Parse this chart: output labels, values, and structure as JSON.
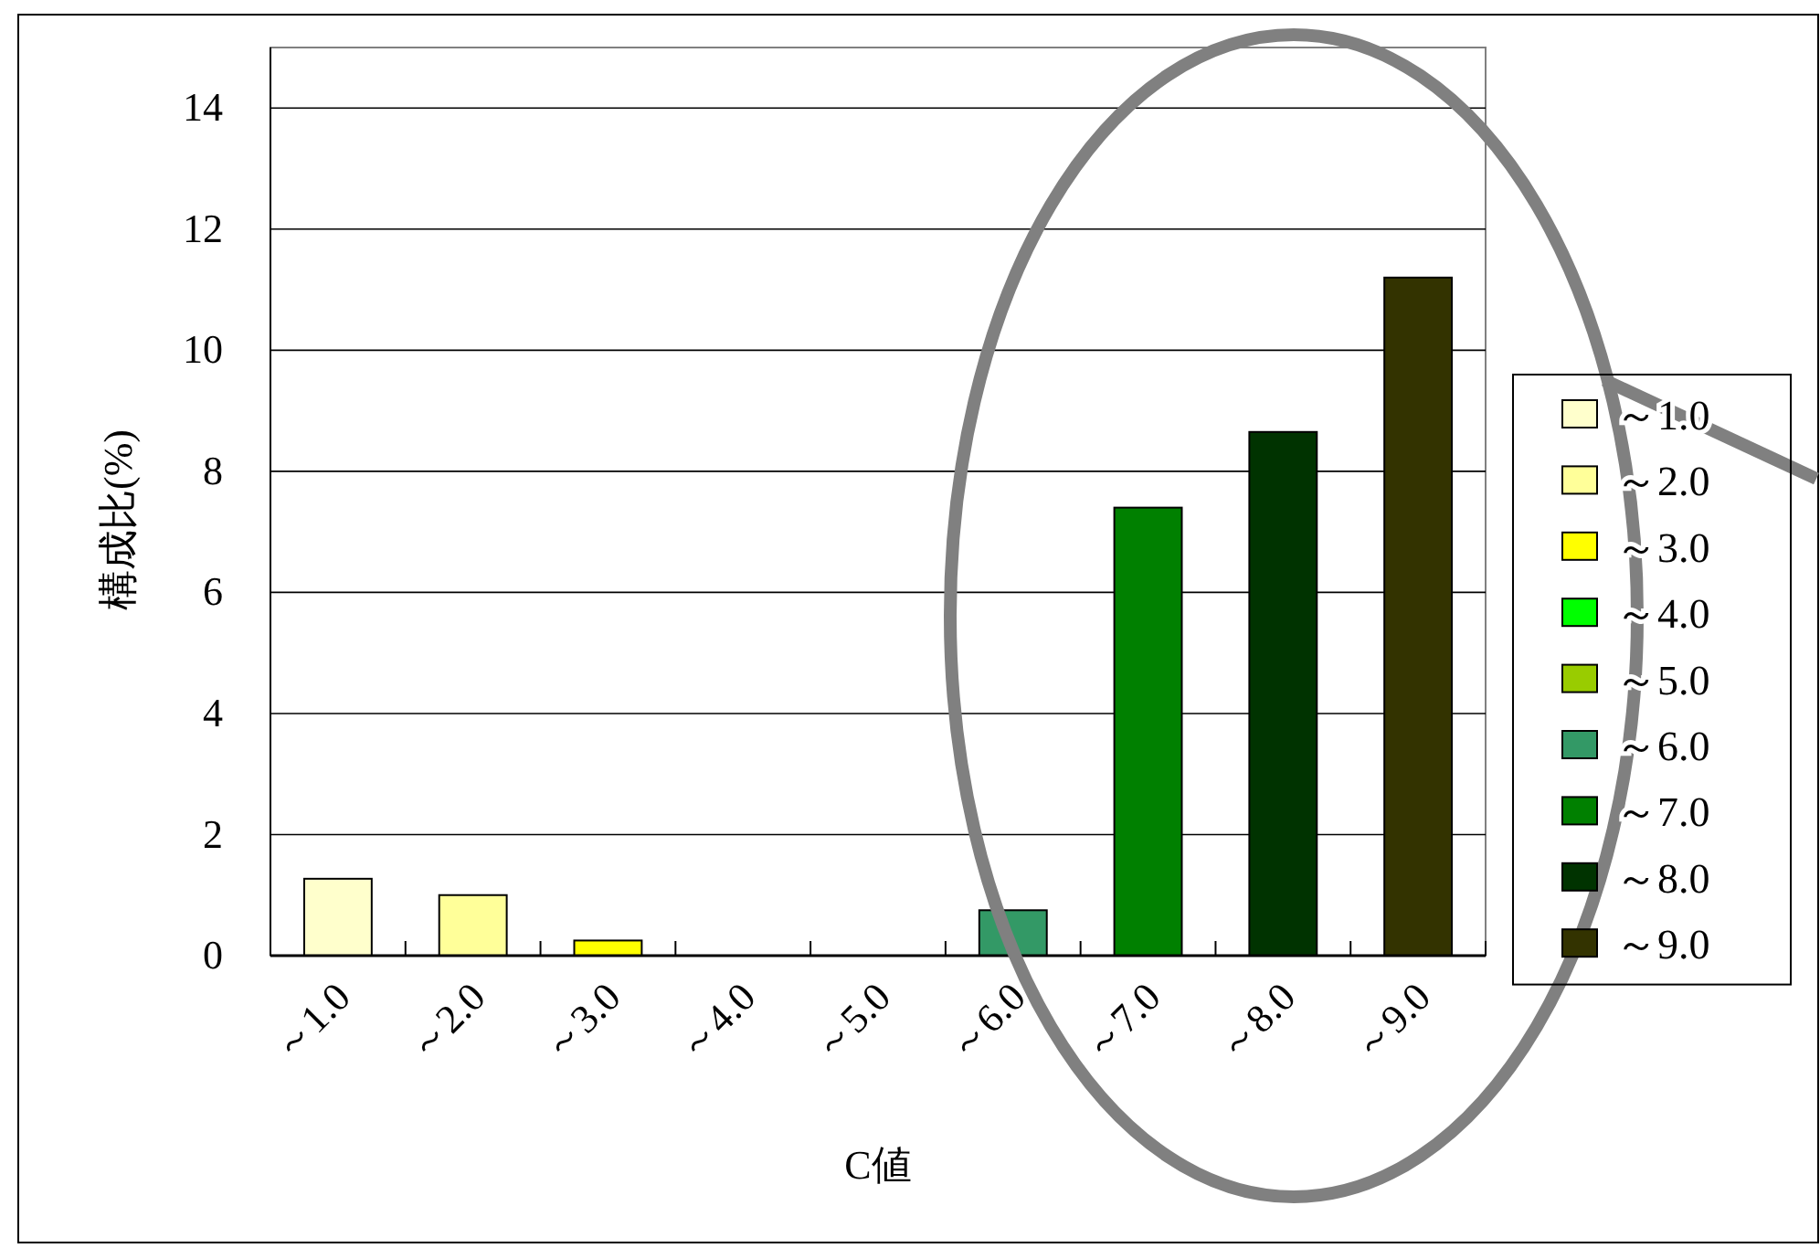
{
  "chart_data": {
    "type": "bar",
    "xlabel": "C値",
    "ylabel": "構成比(%)",
    "categories": [
      "～1.0",
      "～2.0",
      "～3.0",
      "～4.0",
      "～5.0",
      "～6.0",
      "～7.0",
      "～8.0",
      "～9.0"
    ],
    "series": [
      {
        "name": "～1.0",
        "color": "#ffffcc",
        "values": [
          1.27,
          null,
          null,
          null,
          null,
          null,
          null,
          null,
          null
        ]
      },
      {
        "name": "～2.0",
        "color": "#ffff99",
        "values": [
          null,
          1.0,
          null,
          null,
          null,
          null,
          null,
          null,
          null
        ]
      },
      {
        "name": "～3.0",
        "color": "#ffff00",
        "values": [
          null,
          null,
          0.25,
          null,
          null,
          null,
          null,
          null,
          null
        ]
      },
      {
        "name": "～4.0",
        "color": "#00ff00",
        "values": [
          null,
          null,
          null,
          0,
          null,
          null,
          null,
          null,
          null
        ]
      },
      {
        "name": "～5.0",
        "color": "#99cc00",
        "values": [
          null,
          null,
          null,
          null,
          0,
          null,
          null,
          null,
          null
        ]
      },
      {
        "name": "～6.0",
        "color": "#339966",
        "values": [
          null,
          null,
          null,
          null,
          null,
          0.75,
          null,
          null,
          null
        ]
      },
      {
        "name": "～7.0",
        "color": "#008000",
        "values": [
          null,
          null,
          null,
          null,
          null,
          null,
          7.4,
          null,
          null
        ]
      },
      {
        "name": "～8.0",
        "color": "#003300",
        "values": [
          null,
          null,
          null,
          null,
          null,
          null,
          null,
          8.65,
          null
        ]
      },
      {
        "name": "～9.0",
        "color": "#333300",
        "values": [
          null,
          null,
          null,
          null,
          null,
          null,
          null,
          null,
          11.2
        ]
      }
    ],
    "ylim": [
      0,
      15
    ],
    "yticks": [
      0,
      2,
      4,
      6,
      8,
      10,
      12,
      14
    ],
    "grid": "y",
    "legend": "right"
  }
}
